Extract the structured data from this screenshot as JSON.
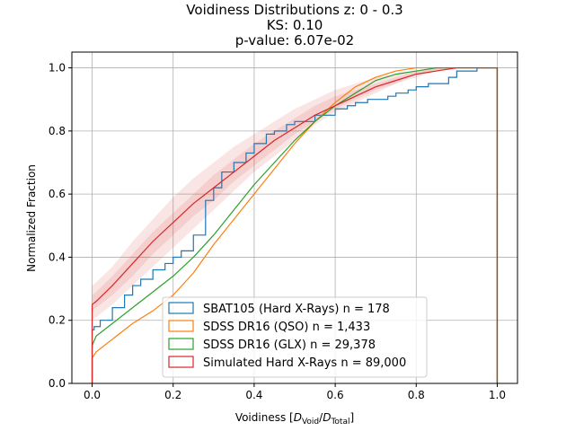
{
  "chart_data": {
    "type": "line",
    "title_lines": [
      "Voidiness Distributions z: 0 - 0.3",
      "KS: 0.10",
      "p-value: 6.07e-02"
    ],
    "xlabel_prefix": "Voidiness [",
    "xlabel_num": "D",
    "xlabel_num_sub": "Void",
    "xlabel_den": "D",
    "xlabel_den_sub": "Total",
    "xlabel_suffix": "]",
    "ylabel": "Normalized Fraction",
    "xlim": [
      -0.05,
      1.05
    ],
    "ylim": [
      0.0,
      1.05
    ],
    "xticks": [
      0.0,
      0.2,
      0.4,
      0.6,
      0.8,
      1.0
    ],
    "yticks": [
      0.0,
      0.2,
      0.4,
      0.6,
      0.8,
      1.0
    ],
    "xtick_labels": [
      "0.0",
      "0.2",
      "0.4",
      "0.6",
      "0.8",
      "1.0"
    ],
    "ytick_labels": [
      "0.0",
      "0.2",
      "0.4",
      "0.6",
      "0.8",
      "1.0"
    ],
    "grid": true,
    "legend_position": "lower center",
    "band": {
      "color": "#d62728",
      "x": [
        0.0,
        0.01,
        0.05,
        0.1,
        0.15,
        0.2,
        0.25,
        0.3,
        0.35,
        0.4,
        0.45,
        0.5,
        0.55,
        0.6,
        0.65,
        0.7,
        0.75,
        0.8,
        0.85,
        0.9,
        0.95,
        1.0
      ],
      "outer_lower": [
        0.2,
        0.21,
        0.25,
        0.31,
        0.37,
        0.43,
        0.49,
        0.55,
        0.61,
        0.67,
        0.72,
        0.77,
        0.82,
        0.86,
        0.89,
        0.92,
        0.95,
        0.97,
        0.99,
        1.0,
        1.0,
        1.0
      ],
      "inner_lower": [
        0.23,
        0.24,
        0.28,
        0.34,
        0.41,
        0.47,
        0.53,
        0.58,
        0.64,
        0.69,
        0.74,
        0.79,
        0.83,
        0.87,
        0.9,
        0.93,
        0.95,
        0.98,
        0.99,
        1.0,
        1.0,
        1.0
      ],
      "inner_upper": [
        0.28,
        0.29,
        0.34,
        0.41,
        0.48,
        0.54,
        0.6,
        0.66,
        0.71,
        0.76,
        0.8,
        0.84,
        0.88,
        0.91,
        0.93,
        0.95,
        0.97,
        0.99,
        1.0,
        1.0,
        1.0,
        1.0
      ],
      "outer_upper": [
        0.31,
        0.32,
        0.37,
        0.45,
        0.52,
        0.59,
        0.65,
        0.7,
        0.75,
        0.79,
        0.83,
        0.87,
        0.9,
        0.93,
        0.95,
        0.97,
        0.98,
        0.99,
        1.0,
        1.0,
        1.0,
        1.0
      ]
    },
    "series": [
      {
        "name": "SBAT105 (Hard X-Rays) n = 178",
        "color": "#1f77b4",
        "step": true,
        "x": [
          0.0,
          0.005,
          0.02,
          0.05,
          0.08,
          0.1,
          0.12,
          0.15,
          0.18,
          0.2,
          0.22,
          0.25,
          0.28,
          0.3,
          0.32,
          0.35,
          0.38,
          0.4,
          0.43,
          0.45,
          0.48,
          0.5,
          0.55,
          0.6,
          0.63,
          0.65,
          0.68,
          0.7,
          0.73,
          0.75,
          0.78,
          0.8,
          0.83,
          0.85,
          0.88,
          0.9,
          0.95,
          1.0
        ],
        "y": [
          0.17,
          0.18,
          0.2,
          0.24,
          0.28,
          0.31,
          0.33,
          0.36,
          0.38,
          0.4,
          0.42,
          0.47,
          0.58,
          0.62,
          0.67,
          0.7,
          0.73,
          0.76,
          0.79,
          0.8,
          0.82,
          0.83,
          0.85,
          0.87,
          0.88,
          0.89,
          0.9,
          0.9,
          0.91,
          0.92,
          0.93,
          0.94,
          0.95,
          0.95,
          0.97,
          0.99,
          1.0,
          1.0
        ]
      },
      {
        "name": "SDSS DR16 (QSO) n = 1,433",
        "color": "#ff7f0e",
        "step": false,
        "x": [
          0.0,
          0.01,
          0.05,
          0.1,
          0.15,
          0.2,
          0.25,
          0.3,
          0.35,
          0.4,
          0.45,
          0.5,
          0.55,
          0.6,
          0.65,
          0.7,
          0.75,
          0.8,
          0.85,
          0.9,
          0.95,
          1.0
        ],
        "y": [
          0.08,
          0.1,
          0.14,
          0.19,
          0.23,
          0.28,
          0.35,
          0.44,
          0.52,
          0.6,
          0.68,
          0.76,
          0.83,
          0.89,
          0.94,
          0.97,
          0.99,
          1.0,
          1.0,
          1.0,
          1.0,
          1.0
        ]
      },
      {
        "name": "SDSS DR16 (GLX) n = 29,378",
        "color": "#2ca02c",
        "step": false,
        "x": [
          0.0,
          0.01,
          0.05,
          0.1,
          0.15,
          0.2,
          0.25,
          0.3,
          0.35,
          0.4,
          0.45,
          0.5,
          0.55,
          0.6,
          0.65,
          0.7,
          0.75,
          0.8,
          0.85,
          0.9,
          0.95,
          1.0
        ],
        "y": [
          0.12,
          0.15,
          0.19,
          0.24,
          0.29,
          0.34,
          0.4,
          0.47,
          0.55,
          0.63,
          0.7,
          0.77,
          0.83,
          0.88,
          0.92,
          0.96,
          0.98,
          0.99,
          1.0,
          1.0,
          1.0,
          1.0
        ]
      },
      {
        "name": "Simulated Hard X-Rays n = 89,000",
        "color": "#d62728",
        "step": false,
        "x": [
          0.0,
          0.01,
          0.05,
          0.1,
          0.15,
          0.2,
          0.25,
          0.3,
          0.35,
          0.4,
          0.45,
          0.5,
          0.55,
          0.6,
          0.65,
          0.7,
          0.75,
          0.8,
          0.85,
          0.9,
          0.95,
          1.0
        ],
        "y": [
          0.25,
          0.26,
          0.31,
          0.38,
          0.45,
          0.51,
          0.57,
          0.62,
          0.67,
          0.72,
          0.77,
          0.81,
          0.85,
          0.88,
          0.91,
          0.94,
          0.96,
          0.98,
          0.99,
          1.0,
          1.0,
          1.0
        ]
      }
    ]
  }
}
